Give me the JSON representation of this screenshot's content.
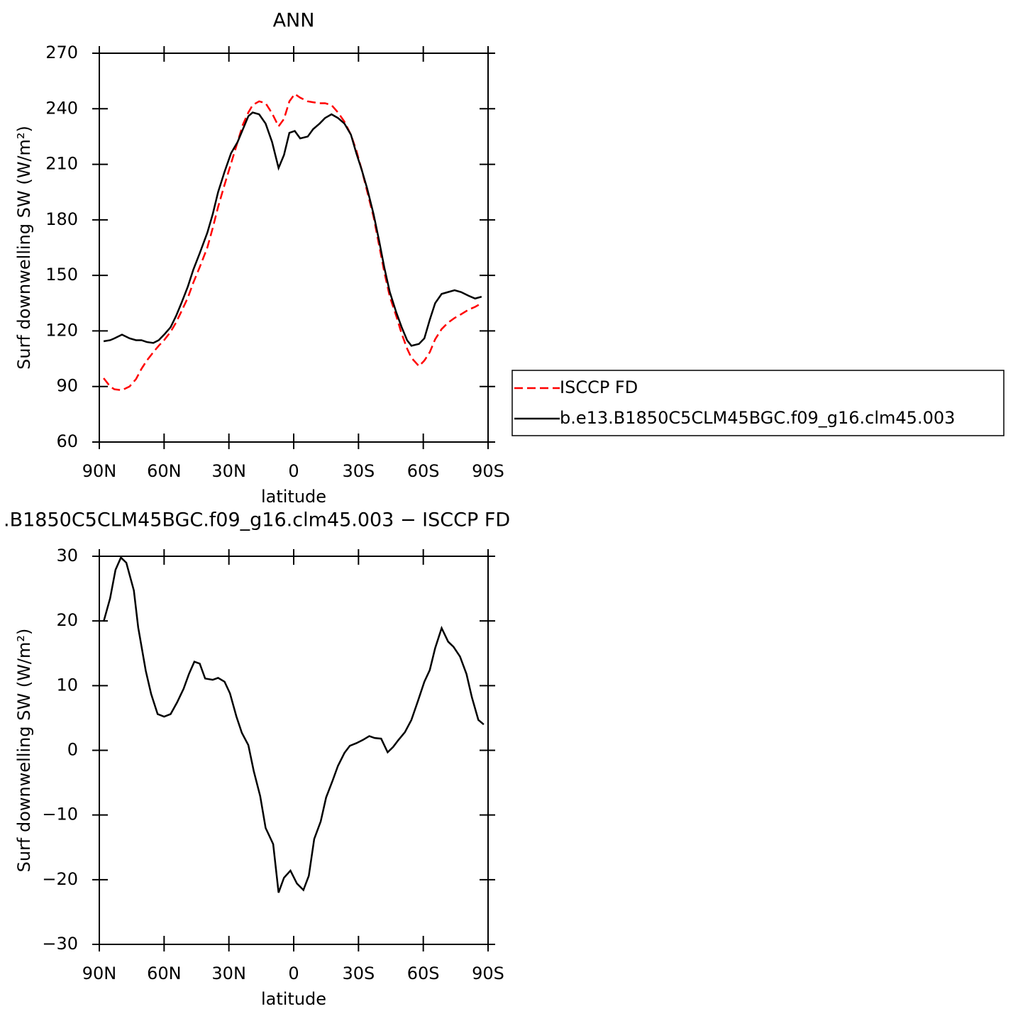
{
  "chart_data": [
    {
      "type": "line",
      "title": "ANN",
      "xlabel": "latitude",
      "ylabel": "Surf downwelling SW (W/m²)",
      "xlim": [
        90,
        -90
      ],
      "ylim": [
        60,
        270
      ],
      "xticks": [
        {
          "value": 90,
          "label": "90N"
        },
        {
          "value": 60,
          "label": "60N"
        },
        {
          "value": 30,
          "label": "30N"
        },
        0,
        {
          "value": -30,
          "label": "30S"
        },
        {
          "value": -60,
          "label": "60S"
        },
        {
          "value": -90,
          "label": "90S"
        }
      ],
      "yticks": [
        60,
        90,
        120,
        150,
        180,
        210,
        240,
        270
      ],
      "legend": "right",
      "x": [
        88,
        85,
        83,
        79.5,
        76,
        73,
        70.5,
        68,
        65,
        62.5,
        60,
        57,
        54.5,
        52,
        49,
        46.5,
        43.5,
        40,
        37.5,
        35,
        32,
        29,
        26,
        23.5,
        21,
        19,
        16,
        13,
        10,
        7,
        4.5,
        2,
        -0.5,
        -3,
        -6.5,
        -9,
        -12,
        -14.5,
        -17.5,
        -20.5,
        -23.5,
        -26.5,
        -29,
        -31.5,
        -34,
        -37,
        -39.5,
        -42,
        -44.5,
        -47.5,
        -50,
        -52.5,
        -54.5,
        -58,
        -60.5,
        -63,
        -65.5,
        -68.5,
        -71.5,
        -74.5,
        -77.5,
        -81,
        -84,
        -87
      ],
      "series": [
        {
          "name": "ISCCP FD",
          "color": "#ff0000",
          "dashed": true,
          "values": [
            94.5,
            90,
            88.5,
            88,
            90,
            94,
            99.5,
            104,
            108.5,
            112,
            115,
            119.5,
            124.5,
            130.5,
            138,
            146,
            154.5,
            165,
            175.5,
            187,
            199,
            210.5,
            222,
            231.5,
            238,
            242,
            244,
            243,
            237.5,
            230.5,
            234.5,
            244,
            248,
            246,
            244,
            243.5,
            243,
            243,
            242,
            238,
            233,
            226,
            217.5,
            207,
            195.5,
            181.5,
            166.5,
            151.5,
            138.5,
            128,
            118.5,
            110.5,
            105.5,
            101,
            104,
            108.5,
            115.5,
            121,
            124.5,
            127,
            129,
            131.5,
            133,
            135
          ]
        },
        {
          "name": "b.e13.B1850C5CLM45BGC.f09_g16.clm45.003",
          "color": "#000000",
          "dashed": false,
          "values": [
            114.4,
            115,
            116,
            118,
            116,
            115,
            115,
            114,
            113.5,
            115,
            118,
            122,
            128,
            135,
            144,
            153,
            162,
            173,
            183,
            195,
            206,
            216,
            222,
            229,
            236,
            238,
            237,
            232,
            222,
            208,
            215,
            227,
            228,
            224,
            225,
            229,
            232,
            235,
            237,
            235,
            232,
            226,
            216,
            207,
            197,
            183,
            169,
            154,
            141,
            130,
            122,
            115,
            112,
            113,
            116,
            126,
            135,
            140,
            141,
            142,
            141,
            139,
            137.5,
            138.5
          ]
        }
      ]
    },
    {
      "type": "line",
      "title": ".B1850C5CLM45BGC.f09_g16.clm45.003 − ISCCP FD",
      "xlabel": "latitude",
      "ylabel": "Surf downwelling SW (W/m²)",
      "xlim": [
        90,
        -90
      ],
      "ylim": [
        -30,
        30
      ],
      "xticks": [
        {
          "value": 90,
          "label": "90N"
        },
        {
          "value": 60,
          "label": "60N"
        },
        {
          "value": 30,
          "label": "30N"
        },
        0,
        {
          "value": -30,
          "label": "30S"
        },
        {
          "value": -60,
          "label": "60S"
        },
        {
          "value": -90,
          "label": "90S"
        }
      ],
      "yticks": [
        {
          "value": -30,
          "label": "−30"
        },
        {
          "value": -20,
          "label": "−20"
        },
        {
          "value": -10,
          "label": "−10"
        },
        0,
        10,
        20,
        30
      ],
      "x": [
        88,
        85,
        82.5,
        80,
        77.5,
        74,
        72,
        68.5,
        66,
        63,
        60,
        57,
        54,
        51,
        48.5,
        46,
        43.5,
        41,
        37.5,
        35,
        32,
        29.5,
        26.5,
        24,
        21,
        18.5,
        15.5,
        13,
        9.5,
        7,
        4.5,
        1.5,
        -1.5,
        -4.5,
        -7,
        -9.5,
        -12.5,
        -15,
        -18,
        -20.5,
        -23.5,
        -26,
        -29,
        -32,
        -35,
        -37.5,
        -40.5,
        -43.5,
        -46,
        -48.5,
        -51.5,
        -54.5,
        -57.5,
        -60.5,
        -63,
        -65.5,
        -68.5,
        -71.5,
        -74,
        -77,
        -80,
        -82.5,
        -85.5,
        -88
      ],
      "color": "#000000",
      "values": [
        19.9,
        23.5,
        27.9,
        29.8,
        29,
        24.7,
        19,
        12.3,
        8.7,
        5.6,
        5.2,
        5.6,
        7.4,
        9.5,
        11.8,
        13.7,
        13.4,
        11.1,
        10.9,
        11.2,
        10.6,
        8.8,
        5.2,
        2.7,
        0.8,
        -3.2,
        -7.1,
        -12,
        -14.5,
        -22,
        -19.7,
        -18.6,
        -20.6,
        -21.6,
        -19.4,
        -13.7,
        -11,
        -7.3,
        -4.7,
        -2.4,
        -0.4,
        0.7,
        1.1,
        1.6,
        2.2,
        1.9,
        1.8,
        -0.3,
        0.5,
        1.6,
        2.8,
        4.7,
        7.6,
        10.6,
        12.4,
        15.8,
        18.9,
        16.8,
        16,
        14.5,
        11.8,
        8.2,
        4.7,
        4
      ]
    }
  ]
}
